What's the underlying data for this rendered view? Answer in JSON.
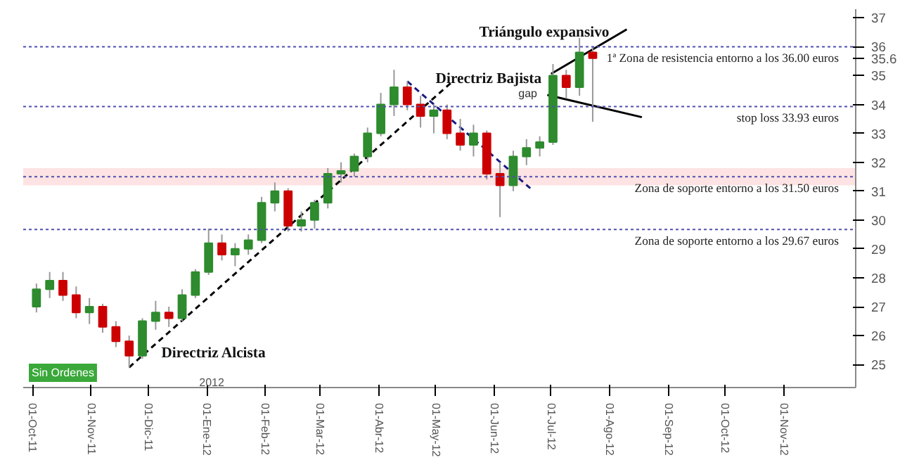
{
  "chart_data": {
    "type": "candlestick",
    "x": [
      "2011-10-03",
      "2011-10-10",
      "2011-10-17",
      "2011-10-24",
      "2011-10-31",
      "2011-11-07",
      "2011-11-14",
      "2011-11-21",
      "2011-11-28",
      "2011-12-05",
      "2011-12-12",
      "2011-12-19",
      "2011-12-26",
      "2012-01-02",
      "2012-01-09",
      "2012-01-16",
      "2012-01-23",
      "2012-01-30",
      "2012-02-06",
      "2012-02-13",
      "2012-02-20",
      "2012-02-27",
      "2012-03-05",
      "2012-03-12",
      "2012-03-19",
      "2012-03-26",
      "2012-04-02",
      "2012-04-09",
      "2012-04-16",
      "2012-04-23",
      "2012-04-30",
      "2012-05-07",
      "2012-05-14",
      "2012-05-21",
      "2012-05-28",
      "2012-06-04",
      "2012-06-11",
      "2012-06-18",
      "2012-06-25",
      "2012-07-02",
      "2012-07-09",
      "2012-07-16",
      "2012-07-23"
    ],
    "ohlc": [
      [
        27.0,
        27.8,
        26.8,
        27.6
      ],
      [
        27.6,
        28.2,
        27.3,
        27.9
      ],
      [
        27.9,
        28.2,
        27.2,
        27.4
      ],
      [
        27.4,
        27.7,
        26.6,
        26.8
      ],
      [
        26.8,
        27.3,
        26.4,
        27.0
      ],
      [
        27.0,
        27.1,
        26.1,
        26.3
      ],
      [
        26.3,
        26.5,
        25.6,
        25.8
      ],
      [
        25.8,
        26.0,
        24.9,
        25.3
      ],
      [
        25.3,
        26.6,
        25.2,
        26.5
      ],
      [
        26.5,
        27.2,
        26.2,
        26.8
      ],
      [
        26.8,
        27.0,
        26.3,
        26.6
      ],
      [
        26.6,
        27.6,
        26.5,
        27.4
      ],
      [
        27.4,
        28.3,
        27.3,
        28.2
      ],
      [
        28.2,
        29.7,
        28.1,
        29.2
      ],
      [
        29.2,
        29.5,
        28.6,
        28.8
      ],
      [
        28.8,
        29.2,
        28.4,
        29.0
      ],
      [
        29.0,
        29.5,
        28.8,
        29.3
      ],
      [
        29.3,
        30.8,
        29.2,
        30.6
      ],
      [
        30.6,
        31.3,
        30.3,
        31.0
      ],
      [
        31.0,
        31.1,
        29.6,
        29.8
      ],
      [
        29.8,
        30.3,
        29.6,
        30.0
      ],
      [
        30.0,
        30.7,
        29.7,
        30.6
      ],
      [
        30.6,
        31.8,
        30.4,
        31.6
      ],
      [
        31.6,
        32.0,
        31.3,
        31.7
      ],
      [
        31.7,
        32.3,
        31.5,
        32.2
      ],
      [
        32.2,
        33.2,
        32.0,
        33.0
      ],
      [
        33.0,
        34.4,
        32.9,
        34.0
      ],
      [
        34.0,
        35.2,
        33.6,
        34.6
      ],
      [
        34.6,
        34.8,
        33.8,
        34.0
      ],
      [
        34.0,
        34.3,
        33.2,
        33.6
      ],
      [
        33.6,
        34.0,
        33.0,
        33.8
      ],
      [
        33.8,
        34.0,
        32.8,
        33.0
      ],
      [
        33.0,
        33.5,
        32.4,
        32.6
      ],
      [
        32.6,
        33.3,
        32.2,
        33.0
      ],
      [
        33.0,
        33.1,
        31.4,
        31.6
      ],
      [
        31.6,
        32.0,
        30.1,
        31.2
      ],
      [
        31.2,
        32.4,
        31.0,
        32.2
      ],
      [
        32.2,
        32.8,
        31.9,
        32.5
      ],
      [
        32.5,
        32.9,
        32.2,
        32.7
      ],
      [
        32.7,
        35.4,
        32.6,
        35.0
      ],
      [
        35.0,
        35.2,
        34.2,
        34.6
      ],
      [
        34.6,
        36.3,
        34.3,
        35.8
      ],
      [
        35.8,
        36.0,
        33.4,
        35.6
      ]
    ],
    "colors": [
      "#2e8b2e",
      "#2e8b2e",
      "#cc0000",
      "#cc0000",
      "#2e8b2e",
      "#cc0000",
      "#cc0000",
      "#cc0000",
      "#2e8b2e",
      "#2e8b2e",
      "#cc0000",
      "#2e8b2e",
      "#2e8b2e",
      "#2e8b2e",
      "#cc0000",
      "#2e8b2e",
      "#2e8b2e",
      "#2e8b2e",
      "#2e8b2e",
      "#cc0000",
      "#2e8b2e",
      "#2e8b2e",
      "#2e8b2e",
      "#2e8b2e",
      "#2e8b2e",
      "#2e8b2e",
      "#2e8b2e",
      "#2e8b2e",
      "#cc0000",
      "#cc0000",
      "#2e8b2e",
      "#cc0000",
      "#cc0000",
      "#2e8b2e",
      "#cc0000",
      "#cc0000",
      "#2e8b2e",
      "#2e8b2e",
      "#2e8b2e",
      "#2e8b2e",
      "#cc0000",
      "#2e8b2e",
      "#cc0000"
    ],
    "series": [
      {
        "type": "line",
        "x": [
          "2011-11-21",
          "2012-05-10"
        ],
        "values": [
          24.9,
          34.8
        ],
        "color": "#000000",
        "line_style": "dashed"
      },
      {
        "type": "line",
        "x": [
          "2012-04-16",
          "2012-06-20"
        ],
        "values": [
          34.8,
          31.1
        ],
        "color": "#1a1a80",
        "line_style": "dashed"
      },
      {
        "type": "line",
        "x": [
          "2012-07-01",
          "2012-08-10"
        ],
        "values": [
          35.06,
          36.6
        ],
        "color": "#000000",
        "line_style": "solid"
      },
      {
        "type": "line",
        "x": [
          "2012-06-29",
          "2012-08-18"
        ],
        "values": [
          34.33,
          33.56
        ],
        "color": "#000000",
        "line_style": "solid"
      }
    ],
    "ref_lines": [
      {
        "axis": "y",
        "value": 36.0,
        "label": "1ª Zona de resistencia entorno a los 36.00 euros",
        "color": "#5050b0",
        "line_style": "dotted"
      },
      {
        "axis": "y",
        "value": 33.93,
        "label": "stop loss 33.93 euros",
        "color": "#5050b0",
        "line_style": "dotted"
      },
      {
        "axis": "y",
        "value": 31.5,
        "label": "Zona de soporte entorno a los 31.50 euros",
        "color": "#5050b0",
        "line_style": "dotted"
      },
      {
        "axis": "y",
        "value": 29.67,
        "label": "Zona de soporte entorno a los 29.67 euros",
        "color": "#5050b0",
        "line_style": "dotted"
      }
    ],
    "bands": [
      {
        "axis": "y",
        "from": 31.2,
        "to": 31.8,
        "color": "#fde3e3"
      }
    ],
    "annotations": [
      "Triángulo expansivo",
      "Directriz Bajista",
      "Directriz Alcista",
      "gap",
      "Sin Ordenes",
      "2012"
    ],
    "xlim": [
      "2011-09-26",
      "2012-12-09"
    ],
    "xticks": [
      {
        "value": "2011-10-01",
        "label": "01-Oct-11"
      },
      {
        "value": "2011-11-01",
        "label": "01-Nov-11"
      },
      {
        "value": "2011-12-01",
        "label": "01-Dic-11"
      },
      {
        "value": "2012-01-01",
        "label": "01-Ene-12"
      },
      {
        "value": "2012-02-01",
        "label": "01-Feb-12"
      },
      {
        "value": "2012-03-01",
        "label": "01-Mar-12"
      },
      {
        "value": "2012-04-01",
        "label": "01-Abr-12"
      },
      {
        "value": "2012-05-01",
        "label": "01-May-12"
      },
      {
        "value": "2012-06-01",
        "label": "01-Jun-12"
      },
      {
        "value": "2012-07-01",
        "label": "01-Jul-12"
      },
      {
        "value": "2012-08-01",
        "label": "01-Ago-12"
      },
      {
        "value": "2012-09-01",
        "label": "01-Sep-12"
      },
      {
        "value": "2012-10-01",
        "label": "01-Oct-12"
      },
      {
        "value": "2012-11-01",
        "label": "01-Nov-12"
      }
    ],
    "ylim": [
      24.2,
      37.3
    ],
    "yticks": [
      25,
      26,
      27,
      28,
      29,
      30,
      31,
      32,
      33,
      34,
      35,
      {
        "value": 35.6,
        "label": "35.6"
      },
      36,
      37
    ],
    "grid": false
  }
}
